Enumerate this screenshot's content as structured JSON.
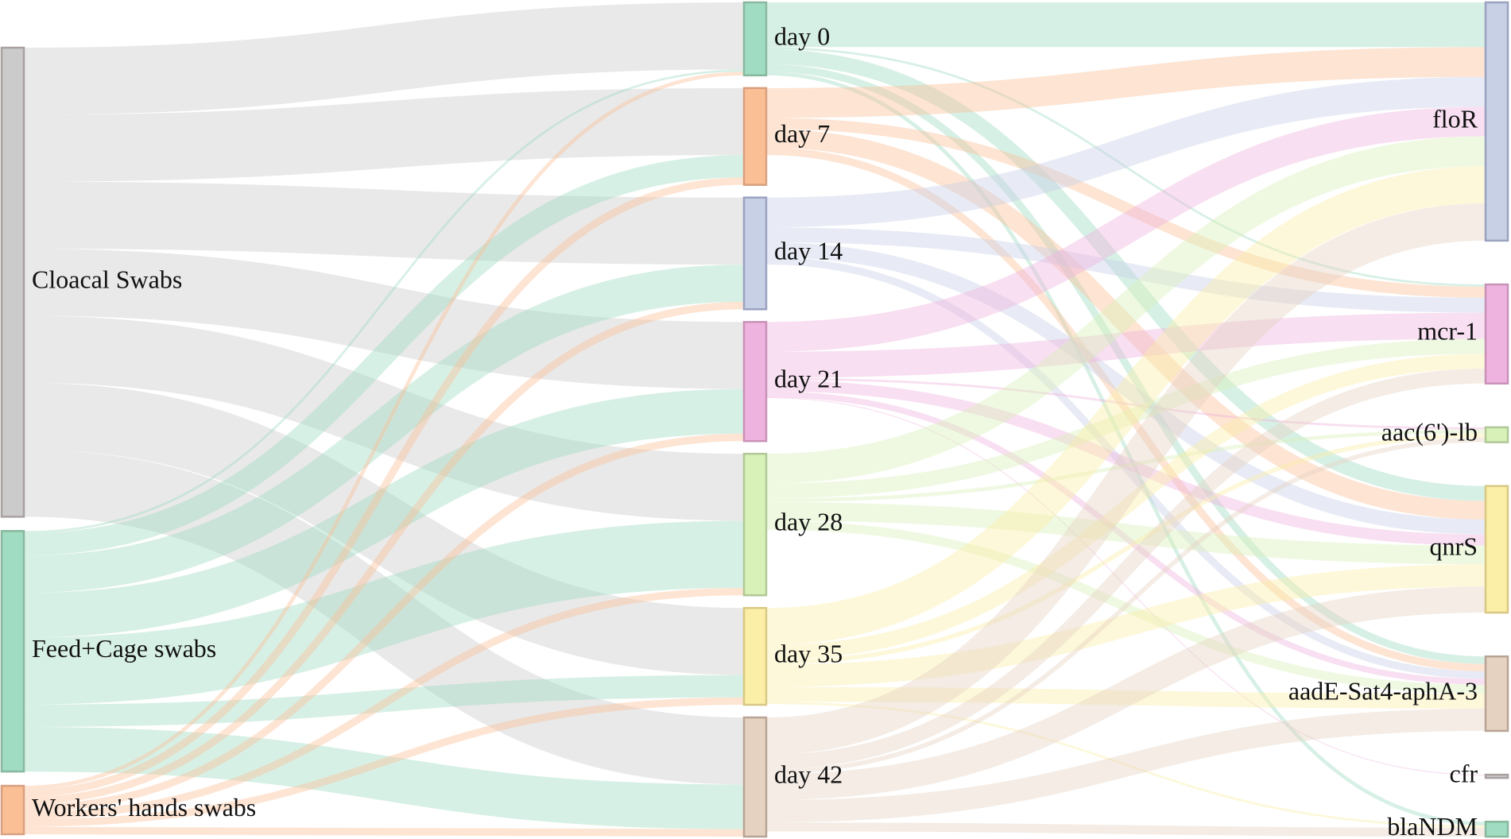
{
  "colors": {
    "gray": "#cbcbcb",
    "green": "#9fdcc2",
    "orange": "#fbbf95",
    "blue": "#c8d0e6",
    "pink": "#eeb3de",
    "lime": "#d8f1b8",
    "yellow": "#fbeea6",
    "tan": "#e5d2c0"
  },
  "node_borders": {
    "gray": "#a9a0a0",
    "green": "#89b89f",
    "orange": "#d8a080",
    "blue": "#9aa2c0",
    "pink": "#c892b8",
    "lime": "#b0c896",
    "yellow": "#d8c884",
    "tan": "#b8a494"
  },
  "sources": [
    {
      "id": "cloacal",
      "label": "Cloacal Swabs",
      "color": "gray"
    },
    {
      "id": "feed",
      "label": "Feed+Cage swabs",
      "color": "green"
    },
    {
      "id": "workers",
      "label": "Workers' hands swabs",
      "color": "orange"
    }
  ],
  "days": [
    {
      "id": "d0",
      "label": "day 0",
      "color": "green"
    },
    {
      "id": "d7",
      "label": "day 7",
      "color": "orange"
    },
    {
      "id": "d14",
      "label": "day 14",
      "color": "blue"
    },
    {
      "id": "d21",
      "label": "day 21",
      "color": "pink"
    },
    {
      "id": "d28",
      "label": "day 28",
      "color": "lime"
    },
    {
      "id": "d35",
      "label": "day 35",
      "color": "yellow"
    },
    {
      "id": "d42",
      "label": "day 42",
      "color": "tan"
    }
  ],
  "genes": [
    {
      "id": "floR",
      "label": "floR",
      "color": "blue"
    },
    {
      "id": "mcr1",
      "label": "mcr-1",
      "color": "pink"
    },
    {
      "id": "aac",
      "label": "aac(6')-lb",
      "color": "lime"
    },
    {
      "id": "qnrS",
      "label": "qnrS",
      "color": "yellow"
    },
    {
      "id": "aadE",
      "label": "aadE-Sat4-aphA-3",
      "color": "tan"
    },
    {
      "id": "cfr",
      "label": "cfr",
      "color": "gray"
    },
    {
      "id": "blaNDM",
      "label": "blaNDM",
      "color": "green"
    }
  ],
  "flows_source_to_day": [
    {
      "source": "cloacal",
      "target": "d0",
      "value": 9
    },
    {
      "source": "cloacal",
      "target": "d7",
      "value": 9
    },
    {
      "source": "cloacal",
      "target": "d14",
      "value": 9
    },
    {
      "source": "cloacal",
      "target": "d21",
      "value": 9
    },
    {
      "source": "cloacal",
      "target": "d28",
      "value": 9
    },
    {
      "source": "cloacal",
      "target": "d35",
      "value": 9
    },
    {
      "source": "cloacal",
      "target": "d42",
      "value": 9
    },
    {
      "source": "feed",
      "target": "d0",
      "value": 0.3
    },
    {
      "source": "feed",
      "target": "d7",
      "value": 3
    },
    {
      "source": "feed",
      "target": "d14",
      "value": 5
    },
    {
      "source": "feed",
      "target": "d21",
      "value": 6
    },
    {
      "source": "feed",
      "target": "d28",
      "value": 9
    },
    {
      "source": "feed",
      "target": "d35",
      "value": 3
    },
    {
      "source": "feed",
      "target": "d42",
      "value": 6
    },
    {
      "source": "workers",
      "target": "d0",
      "value": 0.5
    },
    {
      "source": "workers",
      "target": "d7",
      "value": 1
    },
    {
      "source": "workers",
      "target": "d14",
      "value": 1
    },
    {
      "source": "workers",
      "target": "d21",
      "value": 1
    },
    {
      "source": "workers",
      "target": "d28",
      "value": 1
    },
    {
      "source": "workers",
      "target": "d35",
      "value": 1
    },
    {
      "source": "workers",
      "target": "d42",
      "value": 1
    }
  ],
  "flows_day_to_gene": [
    {
      "source": "d0",
      "target": "floR",
      "value": 6
    },
    {
      "source": "d0",
      "target": "mcr1",
      "value": 0.3
    },
    {
      "source": "d0",
      "target": "qnrS",
      "value": 2
    },
    {
      "source": "d0",
      "target": "aadE",
      "value": 1
    },
    {
      "source": "d0",
      "target": "blaNDM",
      "value": 0.5
    },
    {
      "source": "d7",
      "target": "floR",
      "value": 4
    },
    {
      "source": "d7",
      "target": "mcr1",
      "value": 1.5
    },
    {
      "source": "d7",
      "target": "qnrS",
      "value": 2.5
    },
    {
      "source": "d7",
      "target": "aadE",
      "value": 1
    },
    {
      "source": "d14",
      "target": "floR",
      "value": 4
    },
    {
      "source": "d14",
      "target": "mcr1",
      "value": 2
    },
    {
      "source": "d14",
      "target": "qnrS",
      "value": 2
    },
    {
      "source": "d14",
      "target": "aadE",
      "value": 1
    },
    {
      "source": "d21",
      "target": "floR",
      "value": 4
    },
    {
      "source": "d21",
      "target": "mcr1",
      "value": 3.5
    },
    {
      "source": "d21",
      "target": "aac",
      "value": 0.3
    },
    {
      "source": "d21",
      "target": "qnrS",
      "value": 1.5
    },
    {
      "source": "d21",
      "target": "aadE",
      "value": 0.8
    },
    {
      "source": "d21",
      "target": "cfr",
      "value": 0.1
    },
    {
      "source": "d28",
      "target": "floR",
      "value": 4
    },
    {
      "source": "d28",
      "target": "mcr1",
      "value": 2
    },
    {
      "source": "d28",
      "target": "aac",
      "value": 0.5
    },
    {
      "source": "d28",
      "target": "qnrS",
      "value": 2.5
    },
    {
      "source": "d28",
      "target": "aadE",
      "value": 1.2
    },
    {
      "source": "d35",
      "target": "floR",
      "value": 5
    },
    {
      "source": "d35",
      "target": "mcr1",
      "value": 2
    },
    {
      "source": "d35",
      "target": "aac",
      "value": 0.6
    },
    {
      "source": "d35",
      "target": "qnrS",
      "value": 3
    },
    {
      "source": "d35",
      "target": "aadE",
      "value": 2
    },
    {
      "source": "d35",
      "target": "blaNDM",
      "value": 0.3
    },
    {
      "source": "d42",
      "target": "floR",
      "value": 5
    },
    {
      "source": "d42",
      "target": "mcr1",
      "value": 2
    },
    {
      "source": "d42",
      "target": "aac",
      "value": 0.6
    },
    {
      "source": "d42",
      "target": "qnrS",
      "value": 3.5
    },
    {
      "source": "d42",
      "target": "aadE",
      "value": 3
    },
    {
      "source": "d42",
      "target": "blaNDM",
      "value": 1.2
    }
  ]
}
